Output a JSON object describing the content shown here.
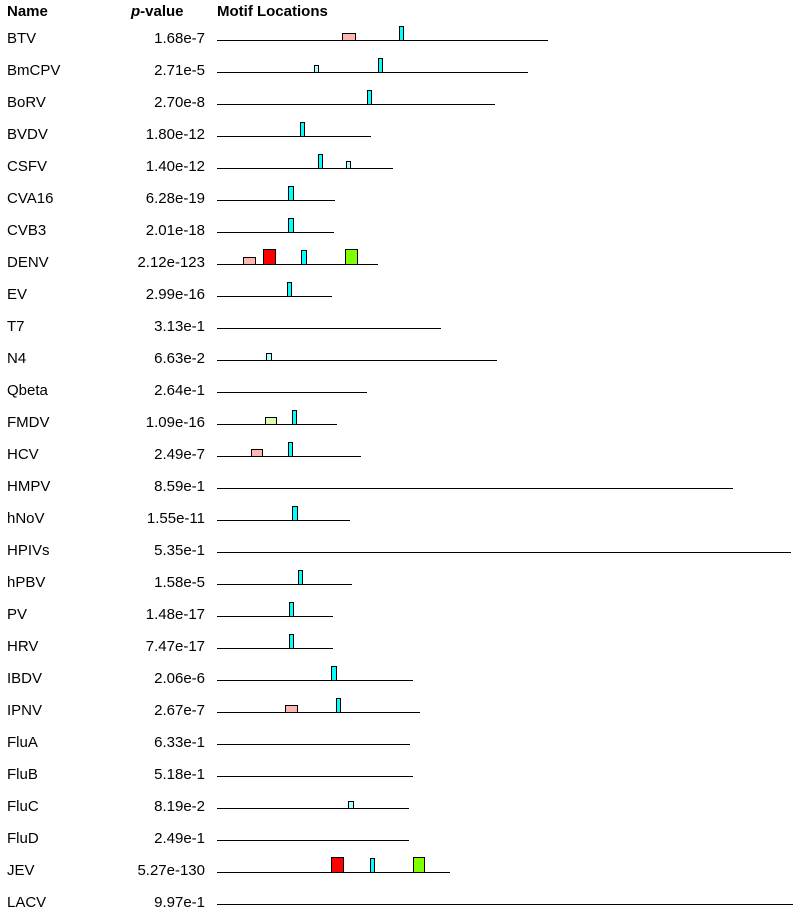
{
  "headers": {
    "name": "Name",
    "p_prefix": "p",
    "p_suffix": "-value",
    "motifs": "Motif Locations"
  },
  "motif_types": {
    "cyan": {
      "color": "#00ffff",
      "height_class": "tall"
    },
    "lightcyan": {
      "color": "#b0ffff",
      "height_class": "short"
    },
    "pink": {
      "color": "#ffb6b0",
      "height_class": "short"
    },
    "red": {
      "color": "#ff0000",
      "height_class": "large"
    },
    "green": {
      "color": "#80ff00",
      "height_class": "large"
    },
    "lightgreen": {
      "color": "#d8ffb0",
      "height_class": "short"
    }
  },
  "rows": [
    {
      "name": "BTV",
      "pvalue": "1.68e-7",
      "length": 331,
      "motifs": [
        {
          "type": "pink",
          "start": 125,
          "width": 14
        },
        {
          "type": "cyan",
          "start": 182,
          "width": 5
        }
      ]
    },
    {
      "name": "BmCPV",
      "pvalue": "2.71e-5",
      "length": 311,
      "motifs": [
        {
          "type": "lightcyan",
          "start": 97,
          "width": 5
        },
        {
          "type": "cyan",
          "start": 161,
          "width": 5
        }
      ]
    },
    {
      "name": "BoRV",
      "pvalue": "2.70e-8",
      "length": 278,
      "motifs": [
        {
          "type": "cyan",
          "start": 150,
          "width": 5
        }
      ]
    },
    {
      "name": "BVDV",
      "pvalue": "1.80e-12",
      "length": 154,
      "motifs": [
        {
          "type": "cyan",
          "start": 83,
          "width": 5
        }
      ]
    },
    {
      "name": "CSFV",
      "pvalue": "1.40e-12",
      "length": 176,
      "motifs": [
        {
          "type": "cyan",
          "start": 101,
          "width": 5
        },
        {
          "type": "lightcyan",
          "start": 129,
          "width": 5
        }
      ]
    },
    {
      "name": "CVA16",
      "pvalue": "6.28e-19",
      "length": 118,
      "motifs": [
        {
          "type": "cyan",
          "start": 71,
          "width": 6
        }
      ]
    },
    {
      "name": "CVB3",
      "pvalue": "2.01e-18",
      "length": 117,
      "motifs": [
        {
          "type": "cyan",
          "start": 71,
          "width": 6
        }
      ]
    },
    {
      "name": "DENV",
      "pvalue": "2.12e-123",
      "length": 161,
      "motifs": [
        {
          "type": "pink",
          "start": 26,
          "width": 13
        },
        {
          "type": "red",
          "start": 46,
          "width": 13
        },
        {
          "type": "cyan",
          "start": 84,
          "width": 6
        },
        {
          "type": "green",
          "start": 128,
          "width": 13
        }
      ]
    },
    {
      "name": "EV",
      "pvalue": "2.99e-16",
      "length": 115,
      "motifs": [
        {
          "type": "cyan",
          "start": 70,
          "width": 5
        }
      ]
    },
    {
      "name": "T7",
      "pvalue": "3.13e-1",
      "length": 224,
      "motifs": []
    },
    {
      "name": "N4",
      "pvalue": "6.63e-2",
      "length": 280,
      "motifs": [
        {
          "type": "lightcyan",
          "start": 49,
          "width": 6
        }
      ]
    },
    {
      "name": "Qbeta",
      "pvalue": "2.64e-1",
      "length": 150,
      "motifs": []
    },
    {
      "name": "FMDV",
      "pvalue": "1.09e-16",
      "length": 120,
      "motifs": [
        {
          "type": "lightgreen",
          "start": 48,
          "width": 12
        },
        {
          "type": "cyan",
          "start": 75,
          "width": 5
        }
      ]
    },
    {
      "name": "HCV",
      "pvalue": "2.49e-7",
      "length": 144,
      "motifs": [
        {
          "type": "pink",
          "start": 34,
          "width": 12
        },
        {
          "type": "cyan",
          "start": 71,
          "width": 5
        }
      ]
    },
    {
      "name": "HMPV",
      "pvalue": "8.59e-1",
      "length": 516,
      "motifs": []
    },
    {
      "name": "hNoV",
      "pvalue": "1.55e-11",
      "length": 133,
      "motifs": [
        {
          "type": "cyan",
          "start": 75,
          "width": 6
        }
      ]
    },
    {
      "name": "HPIVs",
      "pvalue": "5.35e-1",
      "length": 574,
      "motifs": []
    },
    {
      "name": "hPBV",
      "pvalue": "1.58e-5",
      "length": 135,
      "motifs": [
        {
          "type": "cyan",
          "start": 81,
          "width": 5
        }
      ]
    },
    {
      "name": "PV",
      "pvalue": "1.48e-17",
      "length": 116,
      "motifs": [
        {
          "type": "cyan",
          "start": 72,
          "width": 5
        }
      ]
    },
    {
      "name": "HRV",
      "pvalue": "7.47e-17",
      "length": 116,
      "motifs": [
        {
          "type": "cyan",
          "start": 72,
          "width": 5
        }
      ]
    },
    {
      "name": "IBDV",
      "pvalue": "2.06e-6",
      "length": 196,
      "motifs": [
        {
          "type": "cyan",
          "start": 114,
          "width": 6
        }
      ]
    },
    {
      "name": "IPNV",
      "pvalue": "2.67e-7",
      "length": 203,
      "motifs": [
        {
          "type": "pink",
          "start": 68,
          "width": 13
        },
        {
          "type": "cyan",
          "start": 119,
          "width": 5
        }
      ]
    },
    {
      "name": "FluA",
      "pvalue": "6.33e-1",
      "length": 193,
      "motifs": []
    },
    {
      "name": "FluB",
      "pvalue": "5.18e-1",
      "length": 196,
      "motifs": []
    },
    {
      "name": "FluC",
      "pvalue": "8.19e-2",
      "length": 192,
      "motifs": [
        {
          "type": "lightcyan",
          "start": 131,
          "width": 6
        }
      ]
    },
    {
      "name": "FluD",
      "pvalue": "2.49e-1",
      "length": 192,
      "motifs": []
    },
    {
      "name": "JEV",
      "pvalue": "5.27e-130",
      "length": 233,
      "motifs": [
        {
          "type": "red",
          "start": 114,
          "width": 13
        },
        {
          "type": "cyan",
          "start": 153,
          "width": 5
        },
        {
          "type": "green",
          "start": 196,
          "width": 12
        }
      ]
    },
    {
      "name": "LACV",
      "pvalue": "9.97e-1",
      "length": 576,
      "motifs": []
    }
  ]
}
